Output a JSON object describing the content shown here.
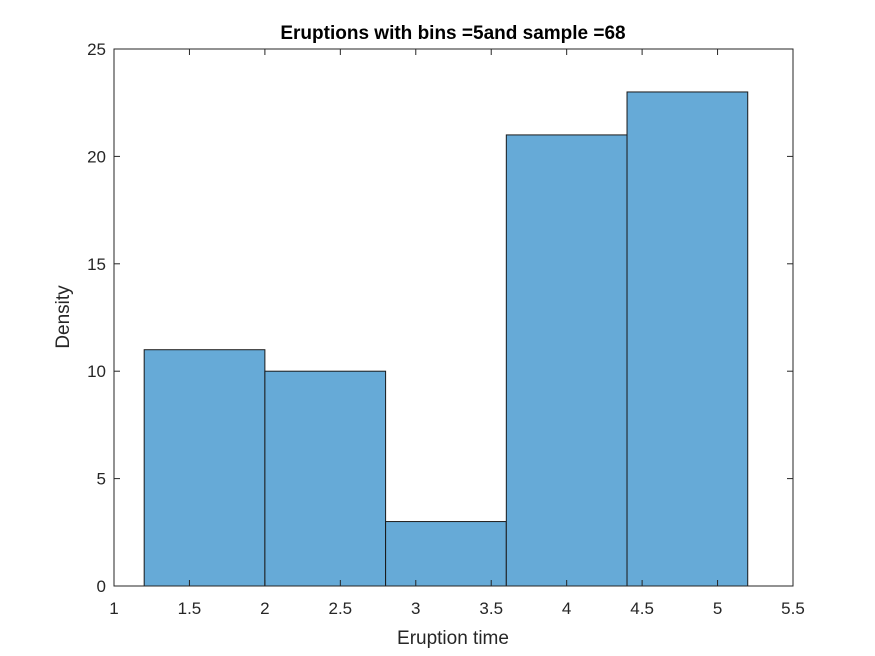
{
  "chart_data": {
    "type": "bar",
    "title": "Eruptions with bins =5and sample =68",
    "xlabel": "Eruption time",
    "ylabel": "Density",
    "xlim": [
      1,
      5.5
    ],
    "ylim": [
      0,
      25
    ],
    "xticks": [
      "1",
      "1.5",
      "2",
      "2.5",
      "3",
      "3.5",
      "4",
      "4.5",
      "5",
      "5.5"
    ],
    "yticks": [
      "0",
      "5",
      "10",
      "15",
      "20",
      "25"
    ],
    "bin_edges": [
      1.2,
      2.0,
      2.8,
      3.6,
      4.4,
      5.2
    ],
    "values": [
      11,
      10,
      3,
      21,
      23
    ],
    "bar_color": "#66aad7",
    "edge_color": "#1a1a1a",
    "grid": false
  }
}
